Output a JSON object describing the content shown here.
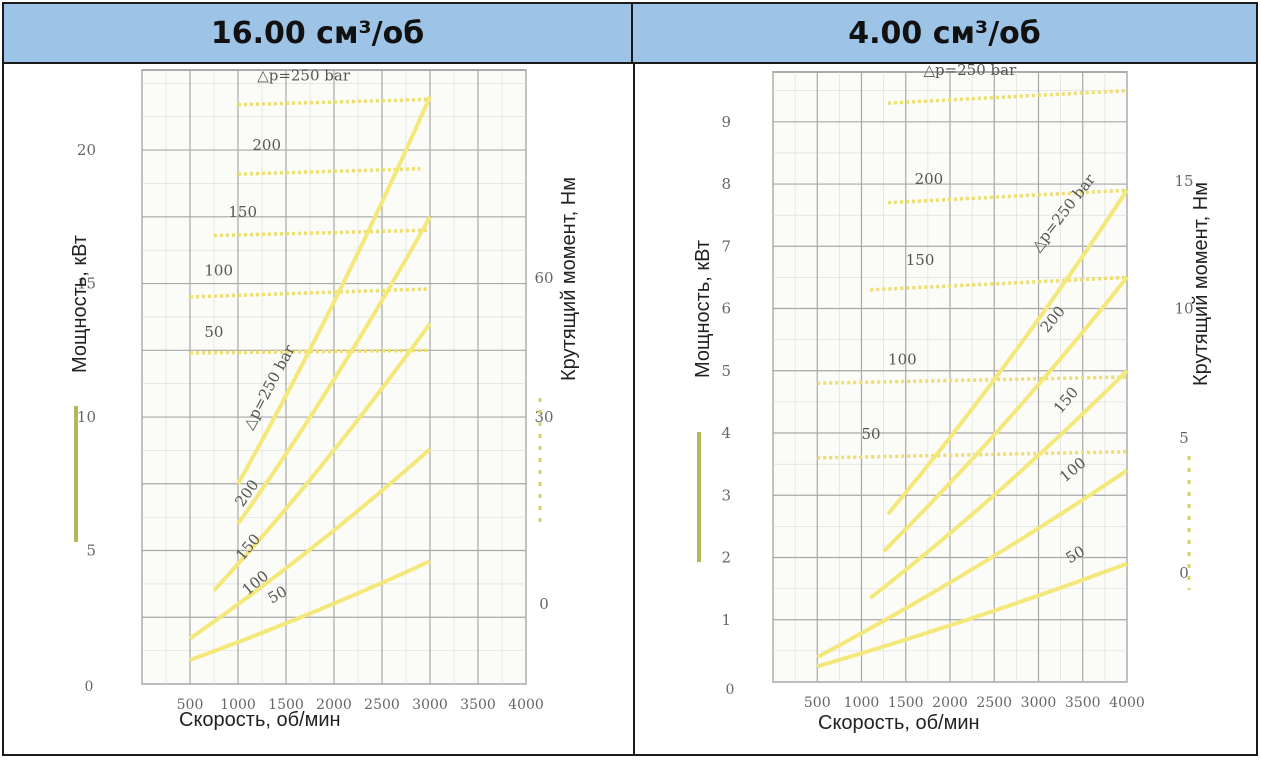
{
  "headers": [
    "16.00 см³/об",
    "4.00 см³/об"
  ],
  "colors": {
    "header_bg": "#9dc3e6",
    "power_line": "#f5e87a",
    "torque_line": "#eedd70",
    "grid": "#a8a8a8",
    "grid_major": "#8f8f8f",
    "legend_solid": "#b8b45a",
    "legend_dotted": "#d8d06a"
  },
  "chart_data": [
    {
      "type": "line",
      "title": "16.00 см³/об",
      "xlabel": "Скорость, об/мин",
      "ylabel": "Мощность, кВт",
      "y2label": "Крутящий момент, Нм",
      "xlim": [
        0,
        4000
      ],
      "ylim": [
        0,
        23
      ],
      "xticks": [
        "500",
        "1000",
        "1500",
        "2000",
        "2500",
        "3000",
        "3500",
        "4000"
      ],
      "x_origin_label": "0",
      "yticks": [
        "5",
        "10",
        "15",
        "20"
      ],
      "y2ticks": [
        "0",
        "30",
        "60"
      ],
      "power_series": [
        {
          "label": "△p=250 bar",
          "x": [
            1000,
            3000
          ],
          "y": [
            7.5,
            22
          ]
        },
        {
          "label": "200",
          "x": [
            1000,
            3000
          ],
          "y": [
            6.0,
            17.5
          ]
        },
        {
          "label": "150",
          "x": [
            750,
            3000
          ],
          "y": [
            3.5,
            13.5
          ]
        },
        {
          "label": "100",
          "x": [
            500,
            3000
          ],
          "y": [
            1.7,
            8.8
          ]
        },
        {
          "label": "50",
          "x": [
            500,
            3000
          ],
          "y": [
            0.9,
            4.6
          ]
        }
      ],
      "torque_series": [
        {
          "label": "△p=250 bar",
          "x": [
            1000,
            3000
          ],
          "y": [
            21.7,
            21.9
          ]
        },
        {
          "label": "200",
          "x": [
            1000,
            2900
          ],
          "y": [
            19.1,
            19.3
          ]
        },
        {
          "label": "150",
          "x": [
            750,
            3000
          ],
          "y": [
            16.8,
            17.0
          ]
        },
        {
          "label": "100",
          "x": [
            500,
            3000
          ],
          "y": [
            14.5,
            14.8
          ]
        },
        {
          "label": "50",
          "x": [
            500,
            3000
          ],
          "y": [
            12.4,
            12.5
          ]
        }
      ]
    },
    {
      "type": "line",
      "title": "4.00 см³/об",
      "xlabel": "Скорость, об/мин",
      "ylabel": "Мощность, кВт",
      "y2label": "Крутящий момент, Нм",
      "xlim": [
        0,
        4000
      ],
      "ylim": [
        0,
        9.8
      ],
      "xticks": [
        "500",
        "1000",
        "1500",
        "2000",
        "2500",
        "3000",
        "3500",
        "4000"
      ],
      "x_origin_label": "0",
      "yticks": [
        "1",
        "2",
        "3",
        "4",
        "5",
        "6",
        "7",
        "8",
        "9"
      ],
      "y2ticks": [
        "0",
        "5",
        "10",
        "15"
      ],
      "power_series": [
        {
          "label": "△p=250 bar",
          "x": [
            1300,
            4000
          ],
          "y": [
            2.7,
            7.9
          ]
        },
        {
          "label": "200",
          "x": [
            1250,
            4000
          ],
          "y": [
            2.1,
            6.5
          ]
        },
        {
          "label": "150",
          "x": [
            1100,
            4000
          ],
          "y": [
            1.35,
            5.0
          ]
        },
        {
          "label": "100",
          "x": [
            500,
            4000
          ],
          "y": [
            0.4,
            3.4
          ]
        },
        {
          "label": "50",
          "x": [
            500,
            4000
          ],
          "y": [
            0.25,
            1.9
          ]
        }
      ],
      "torque_series": [
        {
          "label": "△p=250 bar",
          "x": [
            1300,
            4000
          ],
          "y": [
            9.3,
            9.5
          ]
        },
        {
          "label": "200",
          "x": [
            1300,
            4000
          ],
          "y": [
            7.7,
            7.9
          ]
        },
        {
          "label": "150",
          "x": [
            1100,
            4000
          ],
          "y": [
            6.3,
            6.5
          ]
        },
        {
          "label": "100",
          "x": [
            500,
            4000
          ],
          "y": [
            4.8,
            4.9
          ]
        },
        {
          "label": "50",
          "x": [
            500,
            4000
          ],
          "y": [
            3.6,
            3.7
          ]
        }
      ]
    }
  ]
}
